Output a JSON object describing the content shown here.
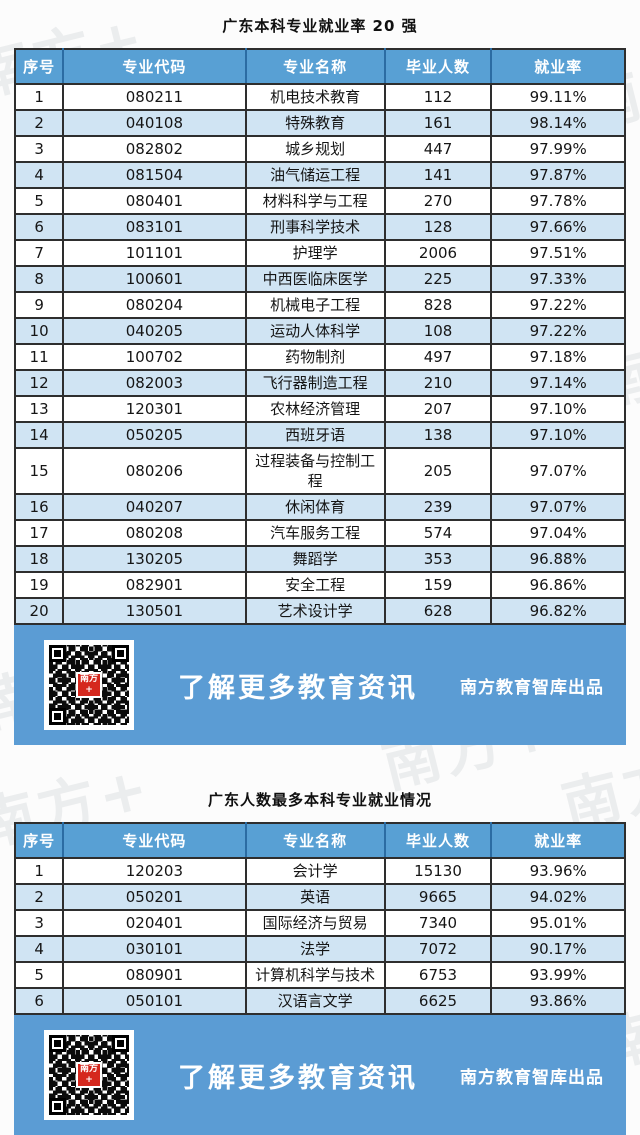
{
  "chart_data": [
    {
      "type": "table",
      "title": "广东本科专业就业率 20 强",
      "columns": [
        "序号",
        "专业代码",
        "专业名称",
        "毕业人数",
        "就业率"
      ],
      "rows": [
        [
          "1",
          "080211",
          "机电技术教育",
          "112",
          "99.11%"
        ],
        [
          "2",
          "040108",
          "特殊教育",
          "161",
          "98.14%"
        ],
        [
          "3",
          "082802",
          "城乡规划",
          "447",
          "97.99%"
        ],
        [
          "4",
          "081504",
          "油气储运工程",
          "141",
          "97.87%"
        ],
        [
          "5",
          "080401",
          "材料科学与工程",
          "270",
          "97.78%"
        ],
        [
          "6",
          "083101",
          "刑事科学技术",
          "128",
          "97.66%"
        ],
        [
          "7",
          "101101",
          "护理学",
          "2006",
          "97.51%"
        ],
        [
          "8",
          "100601",
          "中西医临床医学",
          "225",
          "97.33%"
        ],
        [
          "9",
          "080204",
          "机械电子工程",
          "828",
          "97.22%"
        ],
        [
          "10",
          "040205",
          "运动人体科学",
          "108",
          "97.22%"
        ],
        [
          "11",
          "100702",
          "药物制剂",
          "497",
          "97.18%"
        ],
        [
          "12",
          "082003",
          "飞行器制造工程",
          "210",
          "97.14%"
        ],
        [
          "13",
          "120301",
          "农林经济管理",
          "207",
          "97.10%"
        ],
        [
          "14",
          "050205",
          "西班牙语",
          "138",
          "97.10%"
        ],
        [
          "15",
          "080206",
          "过程装备与控制工程",
          "205",
          "97.07%"
        ],
        [
          "16",
          "040207",
          "休闲体育",
          "239",
          "97.07%"
        ],
        [
          "17",
          "080208",
          "汽车服务工程",
          "574",
          "97.04%"
        ],
        [
          "18",
          "130205",
          "舞蹈学",
          "353",
          "96.88%"
        ],
        [
          "19",
          "082901",
          "安全工程",
          "159",
          "96.86%"
        ],
        [
          "20",
          "130501",
          "艺术设计学",
          "628",
          "96.82%"
        ]
      ]
    },
    {
      "type": "table",
      "title": "广东人数最多本科专业就业情况",
      "columns": [
        "序号",
        "专业代码",
        "专业名称",
        "毕业人数",
        "就业率"
      ],
      "rows": [
        [
          "1",
          "120203",
          "会计学",
          "15130",
          "93.96%"
        ],
        [
          "2",
          "050201",
          "英语",
          "9665",
          "94.02%"
        ],
        [
          "3",
          "020401",
          "国际经济与贸易",
          "7340",
          "95.01%"
        ],
        [
          "4",
          "030101",
          "法学",
          "7072",
          "90.17%"
        ],
        [
          "5",
          "080901",
          "计算机科学与技术",
          "6753",
          "93.99%"
        ],
        [
          "6",
          "050101",
          "汉语言文学",
          "6625",
          "93.86%"
        ]
      ]
    }
  ],
  "footer": {
    "cta": "了解更多教育资讯",
    "credit": "南方教育智库出品",
    "qr_icon": "qr-code-icon",
    "qr_logo_text": "南方+"
  },
  "watermark_text": "南方+",
  "colors": {
    "header_blue": "#58a0d4",
    "row_alt_blue": "#d0e4f3",
    "band_blue": "#5b9cd4",
    "border_dark": "#2e2e2e",
    "logo_red": "#d5281e"
  }
}
